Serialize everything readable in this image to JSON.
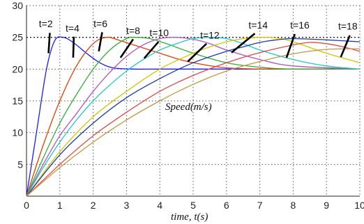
{
  "chart_data": {
    "type": "line",
    "xlabel": "time, t(s)",
    "ylabel": "",
    "inner_label": "Speed(m/s)",
    "xlim": [
      0,
      10
    ],
    "ylim": [
      0,
      30
    ],
    "x_ticks": [
      0,
      1,
      2,
      3,
      4,
      5,
      6,
      7,
      8,
      9,
      10
    ],
    "y_ticks": [
      5,
      10,
      15,
      20,
      25,
      30
    ],
    "x_tick_labels": [
      "0",
      "1",
      "2",
      "3",
      "4",
      "5",
      "6",
      "7",
      "8",
      "9",
      "10"
    ],
    "y_tick_labels": [
      "5",
      "10",
      "15",
      "20",
      "25",
      "30"
    ],
    "grid": true,
    "reference_line": 25,
    "series": [
      {
        "color": "#1a1aff",
        "x": [
          0,
          0.3,
          0.6,
          0.85,
          1.1,
          1.4,
          1.8,
          2.2,
          2.6,
          3.2,
          4,
          5,
          6,
          7,
          8,
          9,
          10
        ],
        "values": [
          0,
          10,
          20,
          24.5,
          25,
          24.2,
          22.5,
          21,
          20.2,
          20,
          20,
          20,
          20,
          20,
          20,
          20,
          20
        ]
      },
      {
        "color": "#e63c00",
        "x": [
          0,
          0.5,
          1,
          1.5,
          2,
          2.4,
          2.8,
          3.4,
          4,
          4.6,
          5.2,
          6,
          7,
          8,
          10
        ],
        "values": [
          0,
          8,
          15,
          20.5,
          24,
          25,
          24.5,
          23.5,
          22.5,
          21.5,
          20.8,
          20.2,
          20,
          20,
          20
        ]
      },
      {
        "color": "#30b030",
        "x": [
          0,
          0.5,
          1,
          1.5,
          2,
          2.5,
          3,
          3.3,
          3.7,
          4.2,
          5,
          6,
          7,
          8,
          10
        ],
        "values": [
          0,
          6,
          11.5,
          16,
          20,
          23,
          24.8,
          25,
          24.8,
          24,
          22.5,
          21,
          20.3,
          20,
          20
        ]
      },
      {
        "color": "#b050c8",
        "x": [
          0,
          0.5,
          1,
          1.5,
          2,
          2.5,
          3,
          3.5,
          4,
          4.5,
          5,
          5.5,
          6,
          7,
          8,
          10
        ],
        "values": [
          0,
          5,
          9.5,
          13,
          16.5,
          19.5,
          22,
          23.8,
          24.8,
          25,
          24.7,
          24,
          23,
          21.5,
          20.5,
          20
        ]
      },
      {
        "color": "#20c8c8",
        "x": [
          0,
          0.5,
          1,
          1.5,
          2,
          2.5,
          3,
          3.5,
          4,
          4.5,
          5,
          5.5,
          6,
          6.5,
          7,
          8,
          9,
          10
        ],
        "values": [
          0,
          4.5,
          8.5,
          12,
          15,
          17.5,
          19.7,
          21.5,
          23,
          24,
          24.8,
          25,
          24.8,
          24,
          23,
          21.5,
          20.5,
          20
        ]
      },
      {
        "color": "#d4c400",
        "x": [
          0,
          1,
          2,
          3,
          4,
          5,
          5.5,
          6,
          6.5,
          7,
          7.5,
          8,
          9,
          10
        ],
        "values": [
          0,
          7,
          12.5,
          16.5,
          20,
          22.5,
          23.5,
          24.3,
          24.8,
          25,
          24.9,
          24.3,
          22.5,
          21
        ]
      },
      {
        "color": "#1a3aa8",
        "x": [
          0,
          1,
          2,
          3,
          4,
          5,
          6,
          6.5,
          7,
          7.5,
          8,
          9,
          10
        ],
        "values": [
          0,
          6.5,
          11.5,
          15.5,
          18.5,
          21,
          22.8,
          23.5,
          24.2,
          24.6,
          24.8,
          24.6,
          24.3
        ]
      },
      {
        "color": "#e04848",
        "x": [
          0,
          1,
          2,
          3,
          4,
          5,
          6,
          7,
          8,
          8.5,
          9,
          9.5,
          10
        ],
        "values": [
          0,
          5,
          9.5,
          13.2,
          16.5,
          19,
          21,
          22.6,
          23.8,
          24.2,
          24,
          23.5,
          22.8
        ]
      },
      {
        "color": "#c8963c",
        "x": [
          0,
          1,
          2,
          3,
          4,
          5,
          6,
          7,
          8,
          9,
          10
        ],
        "values": [
          0,
          4.5,
          8.5,
          12,
          15,
          17.6,
          19.7,
          21.2,
          22.4,
          23.1,
          23.2
        ]
      }
    ],
    "annotations": [
      {
        "label": "t=2",
        "label_x": 0.58,
        "label_y": 26.6,
        "x1": 0.7,
        "y1": 25.7,
        "x2": 0.66,
        "y2": 22.5
      },
      {
        "label": "t=4",
        "label_x": 1.38,
        "label_y": 25.9,
        "x1": 1.42,
        "y1": 25.1,
        "x2": 1.4,
        "y2": 21.8
      },
      {
        "label": "t=6",
        "label_x": 2.22,
        "label_y": 26.6,
        "x1": 2.27,
        "y1": 25.8,
        "x2": 2.17,
        "y2": 22.8
      },
      {
        "label": "t=8",
        "label_x": 3.2,
        "label_y": 25.5,
        "x1": 3.2,
        "y1": 24.7,
        "x2": 2.82,
        "y2": 21.8
      },
      {
        "label": "t=10",
        "label_x": 3.98,
        "label_y": 25.2,
        "x1": 3.96,
        "y1": 24.3,
        "x2": 3.53,
        "y2": 21.7
      },
      {
        "label": "t=12",
        "label_x": 5.5,
        "label_y": 24.8,
        "x1": 5.4,
        "y1": 24,
        "x2": 4.84,
        "y2": 21.2
      },
      {
        "label": "t=14",
        "label_x": 6.95,
        "label_y": 26.4,
        "x1": 6.85,
        "y1": 25.6,
        "x2": 6.15,
        "y2": 22.6
      },
      {
        "label": "t=16",
        "label_x": 8.2,
        "label_y": 26.4,
        "x1": 8.05,
        "y1": 25.5,
        "x2": 7.8,
        "y2": 21.8
      },
      {
        "label": "t=18",
        "label_x": 9.64,
        "label_y": 26.2,
        "x1": 9.7,
        "y1": 25.3,
        "x2": 9.43,
        "y2": 21.9
      }
    ]
  }
}
